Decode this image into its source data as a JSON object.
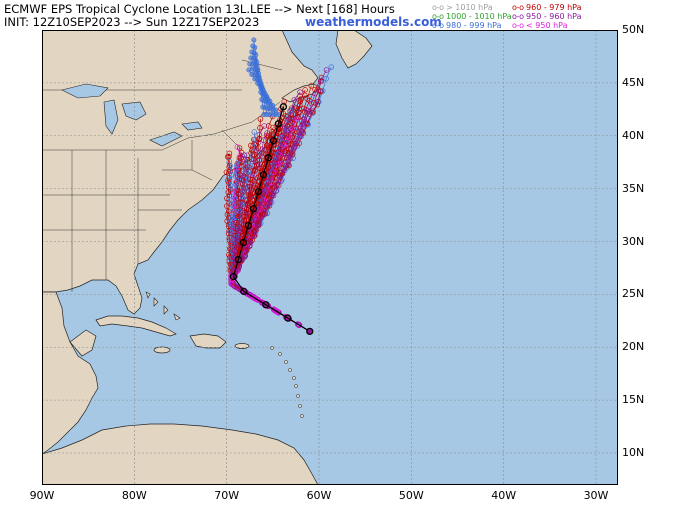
{
  "header": {
    "title": "ECMWF EPS Tropical Cyclone Location 13L.LEE --> Next [168] Hours",
    "init": "INIT: 12Z10SEP2023 --> Sun 12Z17SEP2023",
    "brand": "weathermodels.com"
  },
  "legend": [
    {
      "mark": "o-o",
      "label": "> 1010 hPa",
      "color": "#a0a0a0"
    },
    {
      "mark": "o-o",
      "label": "1000 - 1010 hPa",
      "color": "#2fa02f"
    },
    {
      "mark": "o-o",
      "label": "980 - 999 hPa",
      "color": "#3a6fd8"
    },
    {
      "mark": "o-o",
      "label": "960 - 979 hPa",
      "color": "#c00000"
    },
    {
      "mark": "o-o",
      "label": "950 - 960 hPa",
      "color": "#8a1a9a"
    },
    {
      "mark": "o-o",
      "label": "< 950 hPa",
      "color": "#e020e0"
    }
  ],
  "map": {
    "lon_labels": [
      "90W",
      "80W",
      "70W",
      "60W",
      "50W",
      "40W",
      "30W"
    ],
    "lat_labels": [
      "10N",
      "15N",
      "20N",
      "25N",
      "30N",
      "35N",
      "40N",
      "45N",
      "50N"
    ],
    "ocean_color": "#a7c8e4",
    "land_color": "#e2d6c2"
  }
}
